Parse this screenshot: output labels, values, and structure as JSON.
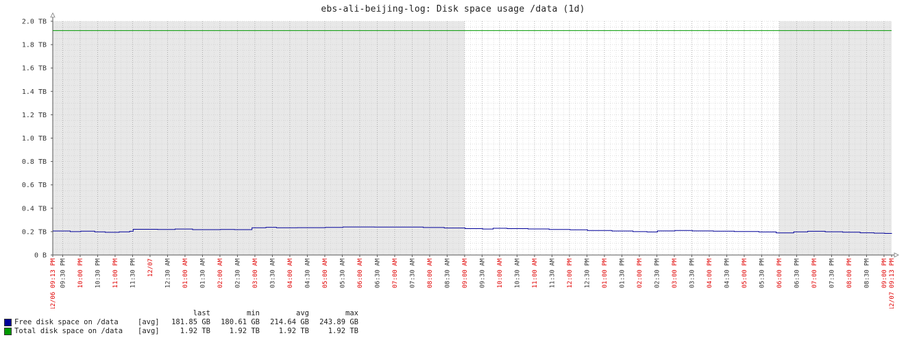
{
  "title": "ebs-ali-beijing-log: Disk space usage /data (1d)",
  "chart_data": {
    "type": "line",
    "y_tick_labels": [
      "0 B",
      "0.2 TB",
      "0.4 TB",
      "0.6 TB",
      "0.8 TB",
      "1.0 TB",
      "1.2 TB",
      "1.4 TB",
      "1.6 TB",
      "1.8 TB",
      "2.0 TB"
    ],
    "y_ticks": [
      0,
      0.2,
      0.4,
      0.6,
      0.8,
      1.0,
      1.2,
      1.4,
      1.6,
      1.8,
      2.0
    ],
    "ylim": [
      0,
      2.0
    ],
    "y_unit": "TB",
    "x_range_hours": [
      0,
      24
    ],
    "x_ticks": [
      {
        "h": 0,
        "label": "12/06 09:13 PM",
        "major": true
      },
      {
        "h": 0.283,
        "label": "09:30 PM",
        "major": false
      },
      {
        "h": 0.783,
        "label": "10:00 PM",
        "major": true
      },
      {
        "h": 1.283,
        "label": "10:30 PM",
        "major": false
      },
      {
        "h": 1.783,
        "label": "11:00 PM",
        "major": true
      },
      {
        "h": 2.283,
        "label": "11:30 PM",
        "major": false
      },
      {
        "h": 2.783,
        "label": "12/07",
        "major": true
      },
      {
        "h": 3.283,
        "label": "12:30 AM",
        "major": false
      },
      {
        "h": 3.783,
        "label": "01:00 AM",
        "major": true
      },
      {
        "h": 4.283,
        "label": "01:30 AM",
        "major": false
      },
      {
        "h": 4.783,
        "label": "02:00 AM",
        "major": true
      },
      {
        "h": 5.283,
        "label": "02:30 AM",
        "major": false
      },
      {
        "h": 5.783,
        "label": "03:00 AM",
        "major": true
      },
      {
        "h": 6.283,
        "label": "03:30 AM",
        "major": false
      },
      {
        "h": 6.783,
        "label": "04:00 AM",
        "major": true
      },
      {
        "h": 7.283,
        "label": "04:30 AM",
        "major": false
      },
      {
        "h": 7.783,
        "label": "05:00 AM",
        "major": true
      },
      {
        "h": 8.283,
        "label": "05:30 AM",
        "major": false
      },
      {
        "h": 8.783,
        "label": "06:00 AM",
        "major": true
      },
      {
        "h": 9.283,
        "label": "06:30 AM",
        "major": false
      },
      {
        "h": 9.783,
        "label": "07:00 AM",
        "major": true
      },
      {
        "h": 10.283,
        "label": "07:30 AM",
        "major": false
      },
      {
        "h": 10.783,
        "label": "08:00 AM",
        "major": true
      },
      {
        "h": 11.283,
        "label": "08:30 AM",
        "major": false
      },
      {
        "h": 11.783,
        "label": "09:00 AM",
        "major": true
      },
      {
        "h": 12.283,
        "label": "09:30 AM",
        "major": false
      },
      {
        "h": 12.783,
        "label": "10:00 AM",
        "major": true
      },
      {
        "h": 13.283,
        "label": "10:30 AM",
        "major": false
      },
      {
        "h": 13.783,
        "label": "11:00 AM",
        "major": true
      },
      {
        "h": 14.283,
        "label": "11:30 AM",
        "major": false
      },
      {
        "h": 14.783,
        "label": "12:00 PM",
        "major": true
      },
      {
        "h": 15.283,
        "label": "12:30 PM",
        "major": false
      },
      {
        "h": 15.783,
        "label": "01:00 PM",
        "major": true
      },
      {
        "h": 16.283,
        "label": "01:30 PM",
        "major": false
      },
      {
        "h": 16.783,
        "label": "02:00 PM",
        "major": true
      },
      {
        "h": 17.283,
        "label": "02:30 PM",
        "major": false
      },
      {
        "h": 17.783,
        "label": "03:00 PM",
        "major": true
      },
      {
        "h": 18.283,
        "label": "03:30 PM",
        "major": false
      },
      {
        "h": 18.783,
        "label": "04:00 PM",
        "major": true
      },
      {
        "h": 19.283,
        "label": "04:30 PM",
        "major": false
      },
      {
        "h": 19.783,
        "label": "05:00 PM",
        "major": true
      },
      {
        "h": 20.283,
        "label": "05:30 PM",
        "major": false
      },
      {
        "h": 20.783,
        "label": "06:00 PM",
        "major": true
      },
      {
        "h": 21.283,
        "label": "06:30 PM",
        "major": false
      },
      {
        "h": 21.783,
        "label": "07:00 PM",
        "major": true
      },
      {
        "h": 22.283,
        "label": "07:30 PM",
        "major": false
      },
      {
        "h": 22.783,
        "label": "08:00 PM",
        "major": true
      },
      {
        "h": 23.283,
        "label": "08:30 PM",
        "major": false
      },
      {
        "h": 23.783,
        "label": "09:00 PM",
        "major": true
      },
      {
        "h": 24,
        "label": "12/07 09:13 PM",
        "major": true
      }
    ],
    "night_bands_hours": [
      [
        0,
        11.783
      ],
      [
        20.783,
        24
      ]
    ],
    "series": [
      {
        "name": "Free disk space on /data",
        "color": "#000099",
        "points": [
          [
            0,
            0.205
          ],
          [
            0.5,
            0.2
          ],
          [
            0.8,
            0.204
          ],
          [
            1.2,
            0.198
          ],
          [
            1.5,
            0.194
          ],
          [
            1.9,
            0.198
          ],
          [
            2.2,
            0.203
          ],
          [
            2.3,
            0.22
          ],
          [
            3.0,
            0.218
          ],
          [
            3.5,
            0.222
          ],
          [
            4.0,
            0.217
          ],
          [
            4.8,
            0.218
          ],
          [
            5.2,
            0.217
          ],
          [
            5.7,
            0.233
          ],
          [
            6.1,
            0.237
          ],
          [
            6.4,
            0.233
          ],
          [
            7.0,
            0.234
          ],
          [
            7.8,
            0.236
          ],
          [
            8.3,
            0.24
          ],
          [
            9.2,
            0.239
          ],
          [
            10.6,
            0.235
          ],
          [
            11.2,
            0.231
          ],
          [
            11.8,
            0.226
          ],
          [
            12.3,
            0.222
          ],
          [
            12.6,
            0.229
          ],
          [
            13.0,
            0.226
          ],
          [
            13.6,
            0.223
          ],
          [
            14.2,
            0.219
          ],
          [
            14.8,
            0.215
          ],
          [
            15.3,
            0.21
          ],
          [
            16.0,
            0.205
          ],
          [
            16.6,
            0.2
          ],
          [
            17.0,
            0.197
          ],
          [
            17.3,
            0.206
          ],
          [
            17.8,
            0.21
          ],
          [
            18.3,
            0.206
          ],
          [
            18.9,
            0.204
          ],
          [
            19.5,
            0.201
          ],
          [
            20.2,
            0.197
          ],
          [
            20.7,
            0.189
          ],
          [
            21.2,
            0.198
          ],
          [
            21.6,
            0.203
          ],
          [
            22.1,
            0.199
          ],
          [
            22.6,
            0.195
          ],
          [
            23.1,
            0.19
          ],
          [
            23.5,
            0.187
          ],
          [
            23.8,
            0.185
          ],
          [
            24,
            0.182
          ]
        ],
        "function": "[avg]",
        "last": "181.85 GB",
        "min": "180.61 GB",
        "avg": "214.64 GB",
        "max": "243.89 GB"
      },
      {
        "name": "Total disk space on /data",
        "color": "#009900",
        "points": [
          [
            0,
            1.92
          ],
          [
            24,
            1.92
          ]
        ],
        "function": "[avg]",
        "last": "1.92 TB",
        "min": "1.92 TB",
        "avg": "1.92 TB",
        "max": "1.92 TB"
      }
    ],
    "legend": {
      "headers": {
        "last": "last",
        "min": "min",
        "avg": "avg",
        "max": "max"
      }
    }
  }
}
